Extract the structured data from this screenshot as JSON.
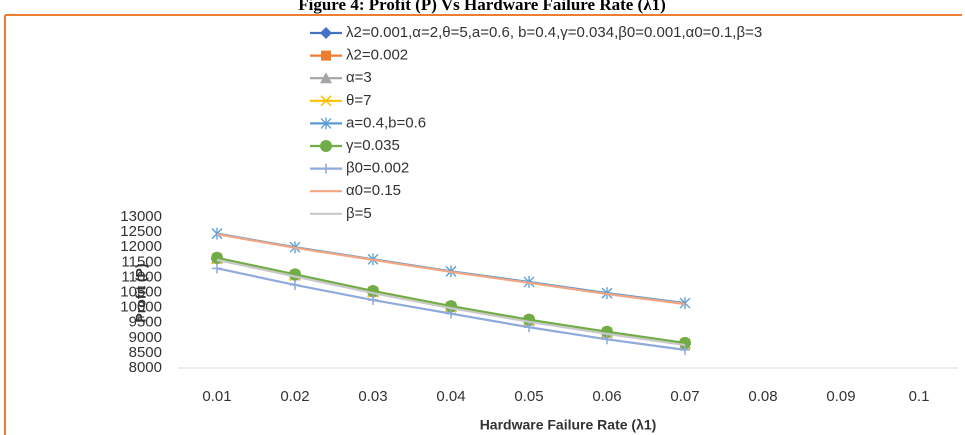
{
  "chart_data": {
    "type": "line",
    "title": "Figure 4: Profit (P) Vs Hardware Failure Rate (λ1)",
    "x_label": "Hardware Failure Rate (λ1)",
    "y_label": "Profit (P)",
    "categories": [
      "0.01",
      "0.02",
      "0.03",
      "0.04",
      "0.05",
      "0.06",
      "0.07",
      "0.08",
      "0.09",
      "0.1"
    ],
    "series": [
      {
        "name": "λ2=0.001,α=2,θ=5,a=0.6, b=0.4,γ=0.034,β0=0.001,α0=0.1,β=3",
        "color": "#4472c4",
        "marker": "diamond",
        "values": [
          11600,
          11050,
          10500,
          10000,
          9550,
          9150,
          8780,
          null,
          null,
          null
        ]
      },
      {
        "name": "λ2=0.002",
        "color": "#ed7d31",
        "marker": "square",
        "values": [
          11630,
          11080,
          10530,
          10030,
          9580,
          9180,
          8810,
          null,
          null,
          null
        ]
      },
      {
        "name": "α=3",
        "color": "#a5a5a5",
        "marker": "triangle",
        "values": [
          11620,
          11070,
          10520,
          10020,
          9570,
          9170,
          8800,
          null,
          null,
          null
        ]
      },
      {
        "name": "θ=7",
        "color": "#ffc000",
        "marker": "x",
        "values": [
          11610,
          11060,
          10510,
          10010,
          9560,
          9160,
          8790,
          null,
          null,
          null
        ]
      },
      {
        "name": "a=0.4,b=0.6",
        "color": "#5b9bd5",
        "marker": "star",
        "values": [
          12450,
          12000,
          11600,
          11200,
          10850,
          10480,
          10150,
          null,
          null,
          null
        ]
      },
      {
        "name": "γ=0.035",
        "color": "#70ad47",
        "marker": "circle",
        "values": [
          11650,
          11100,
          10550,
          10050,
          9600,
          9200,
          8830,
          null,
          null,
          null
        ]
      },
      {
        "name": "β0=0.002",
        "color": "#8faadc",
        "marker": "plus",
        "values": [
          11300,
          10750,
          10250,
          9800,
          9350,
          8950,
          8600,
          null,
          null,
          null
        ]
      },
      {
        "name": "α0=0.15",
        "color": "#f4a582",
        "marker": "none",
        "values": [
          12430,
          11980,
          11580,
          11180,
          10820,
          10450,
          10120,
          null,
          null,
          null
        ]
      },
      {
        "name": "β=5",
        "color": "#c9c9c9",
        "marker": "none",
        "values": [
          11580,
          11030,
          10480,
          9980,
          9530,
          9130,
          8760,
          null,
          null,
          null
        ]
      }
    ],
    "ylim": [
      8000,
      13000
    ],
    "yticks": [
      8000,
      8500,
      9000,
      9500,
      10000,
      10500,
      11000,
      11500,
      12000,
      12500,
      13000
    ],
    "grid": false
  }
}
